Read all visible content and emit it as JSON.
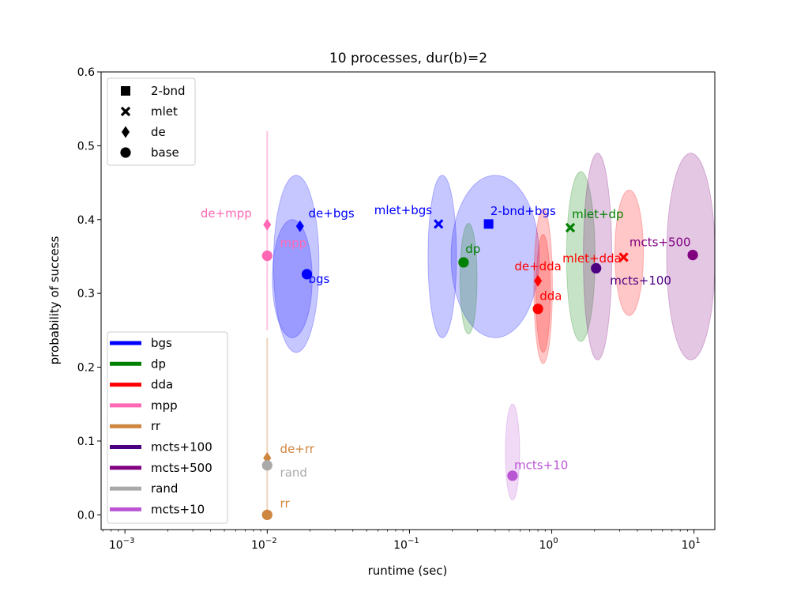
{
  "chart_data": {
    "type": "scatter",
    "title": "10 processes, dur(b)=2",
    "xlabel": "runtime (sec)",
    "ylabel": "probability of success",
    "xscale": "log",
    "xlim": [
      0.00068,
      14
    ],
    "ylim": [
      -0.02,
      0.6
    ],
    "x_ticks": [
      {
        "value": 0.001,
        "base": "10",
        "exp": "−3"
      },
      {
        "value": 0.01,
        "base": "10",
        "exp": "−2"
      },
      {
        "value": 0.1,
        "base": "10",
        "exp": "−1"
      },
      {
        "value": 1,
        "base": "10",
        "exp": "0"
      },
      {
        "value": 10,
        "base": "10",
        "exp": "1"
      }
    ],
    "y_ticks": [
      "0.0",
      "0.1",
      "0.2",
      "0.3",
      "0.4",
      "0.5",
      "0.6"
    ],
    "marker_legend": {
      "position": "upper-left",
      "entries": [
        {
          "marker": "square",
          "label": "2-bnd"
        },
        {
          "marker": "x",
          "label": "mlet"
        },
        {
          "marker": "diamond",
          "label": "de"
        },
        {
          "marker": "circle",
          "label": "base"
        }
      ]
    },
    "color_legend": {
      "position": "lower-left",
      "entries": [
        {
          "label": "bgs",
          "color": "#0000ff"
        },
        {
          "label": "dp",
          "color": "#008000"
        },
        {
          "label": "dda",
          "color": "#ff0000"
        },
        {
          "label": "mpp",
          "color": "#ff69b4"
        },
        {
          "label": "rr",
          "color": "#cd853f"
        },
        {
          "label": "mcts+100",
          "color": "#4b0082"
        },
        {
          "label": "mcts+500",
          "color": "#800080"
        },
        {
          "label": "rand",
          "color": "#a9a9a9"
        },
        {
          "label": "mcts+10",
          "color": "#ba55d3"
        }
      ]
    },
    "spreads": [
      {
        "cx": 0.016,
        "rx_dec": 0.16,
        "cy": 0.34,
        "ry": 0.12,
        "color": "#0000ff",
        "alpha": 0.22
      },
      {
        "cx": 0.015,
        "rx_dec": 0.14,
        "cy": 0.32,
        "ry": 0.08,
        "color": "#0000ff",
        "alpha": 0.22
      },
      {
        "cx": 0.17,
        "rx_dec": 0.1,
        "cy": 0.35,
        "ry": 0.11,
        "color": "#0000ff",
        "alpha": 0.22
      },
      {
        "cx": 0.4,
        "rx_dec": 0.31,
        "cy": 0.35,
        "ry": 0.11,
        "color": "#0000ff",
        "alpha": 0.22
      },
      {
        "cx": 0.26,
        "rx_dec": 0.06,
        "cy": 0.32,
        "ry": 0.075,
        "color": "#008000",
        "alpha": 0.22
      },
      {
        "cx": 1.6,
        "rx_dec": 0.1,
        "cy": 0.35,
        "ry": 0.115,
        "color": "#008000",
        "alpha": 0.22
      },
      {
        "cx": 0.87,
        "rx_dec": 0.065,
        "cy": 0.31,
        "ry": 0.105,
        "color": "#ff0000",
        "alpha": 0.22
      },
      {
        "cx": 0.87,
        "rx_dec": 0.05,
        "cy": 0.3,
        "ry": 0.08,
        "color": "#ff0000",
        "alpha": 0.22
      },
      {
        "cx": 3.5,
        "rx_dec": 0.1,
        "cy": 0.355,
        "ry": 0.085,
        "color": "#ff0000",
        "alpha": 0.22
      },
      {
        "cx": 2.1,
        "rx_dec": 0.1,
        "cy": 0.35,
        "ry": 0.14,
        "color": "#800080",
        "alpha": 0.22
      },
      {
        "cx": 9.5,
        "rx_dec": 0.17,
        "cy": 0.35,
        "ry": 0.14,
        "color": "#800080",
        "alpha": 0.22
      },
      {
        "cx": 0.53,
        "rx_dec": 0.05,
        "cy": 0.085,
        "ry": 0.065,
        "color": "#ba55d3",
        "alpha": 0.22
      }
    ],
    "error_bars": [
      {
        "x": 0.01,
        "y1": 0.25,
        "y2": 0.52,
        "color": "#ff69b4",
        "alpha": 0.4
      },
      {
        "x": 0.01,
        "y1": 0.0,
        "y2": 0.24,
        "color": "#cd853f",
        "alpha": 0.35
      }
    ],
    "points": [
      {
        "label": "bgs",
        "x": 0.019,
        "y": 0.326,
        "marker": "circle",
        "color": "#0000ff",
        "anchor": "start",
        "dx": 0,
        "dy": -0.012
      },
      {
        "label": "de+bgs",
        "x": 0.017,
        "y": 0.391,
        "marker": "diamond",
        "color": "#0000ff",
        "anchor": "start",
        "dx": 0.002,
        "dy": 0.012
      },
      {
        "label": "mpp",
        "x": 0.01,
        "y": 0.351,
        "marker": "circle",
        "color": "#ff69b4",
        "anchor": "start",
        "dx": 0.002,
        "dy": 0.012
      },
      {
        "label": "de+mpp",
        "x": 0.01,
        "y": 0.393,
        "marker": "diamond",
        "color": "#ff69b4",
        "anchor": "end",
        "dx": -0.002,
        "dy": 0.01
      },
      {
        "label": "rr",
        "x": 0.01,
        "y": 0.0,
        "marker": "circle",
        "color": "#cd853f",
        "anchor": "start",
        "dx": 0.002,
        "dy": 0.01
      },
      {
        "label": "de+rr",
        "x": 0.01,
        "y": 0.077,
        "marker": "diamond",
        "color": "#cd853f",
        "anchor": "start",
        "dx": 0.002,
        "dy": 0.007
      },
      {
        "label": "rand",
        "x": 0.01,
        "y": 0.067,
        "marker": "circle",
        "color": "#a9a9a9",
        "anchor": "start",
        "dx": 0.002,
        "dy": -0.015
      },
      {
        "label": "mlet+bgs",
        "x": 0.16,
        "y": 0.394,
        "marker": "x",
        "color": "#0000ff",
        "anchor": "end",
        "dx": -0.012,
        "dy": 0.013
      },
      {
        "label": "2-bnd+bgs",
        "x": 0.36,
        "y": 0.394,
        "marker": "square",
        "color": "#0000ff",
        "anchor": "start",
        "dx": 0.001,
        "dy": 0.012
      },
      {
        "label": "dp",
        "x": 0.24,
        "y": 0.342,
        "marker": "circle",
        "color": "#008000",
        "anchor": "start",
        "dx": 0.001,
        "dy": 0.013
      },
      {
        "label": "mlet+dp",
        "x": 1.35,
        "y": 0.389,
        "marker": "x",
        "color": "#008000",
        "anchor": "start",
        "dx": 0.001,
        "dy": 0.013
      },
      {
        "label": "dda",
        "x": 0.8,
        "y": 0.279,
        "marker": "circle",
        "color": "#ff0000",
        "anchor": "start",
        "dx": 0.001,
        "dy": 0.012
      },
      {
        "label": "de+dda",
        "x": 0.8,
        "y": 0.317,
        "marker": "diamond",
        "color": "#ff0000",
        "anchor": "middle",
        "dx": 0,
        "dy": 0.014
      },
      {
        "label": "mlet+dda",
        "x": 3.2,
        "y": 0.349,
        "marker": "x",
        "color": "#ff0000",
        "anchor": "end",
        "dx": -0.03,
        "dy": -0.007
      },
      {
        "label": "mcts+100",
        "x": 2.05,
        "y": 0.334,
        "marker": "circle",
        "color": "#4b0082",
        "anchor": "start",
        "dx": 0.45,
        "dy": -0.022
      },
      {
        "label": "mcts+500",
        "x": 9.8,
        "y": 0.352,
        "marker": "circle",
        "color": "#800080",
        "anchor": "end",
        "dx": -0.06,
        "dy": 0.012
      },
      {
        "label": "mcts+10",
        "x": 0.53,
        "y": 0.053,
        "marker": "circle",
        "color": "#ba55d3",
        "anchor": "start",
        "dx": 0.001,
        "dy": 0.009
      }
    ]
  }
}
